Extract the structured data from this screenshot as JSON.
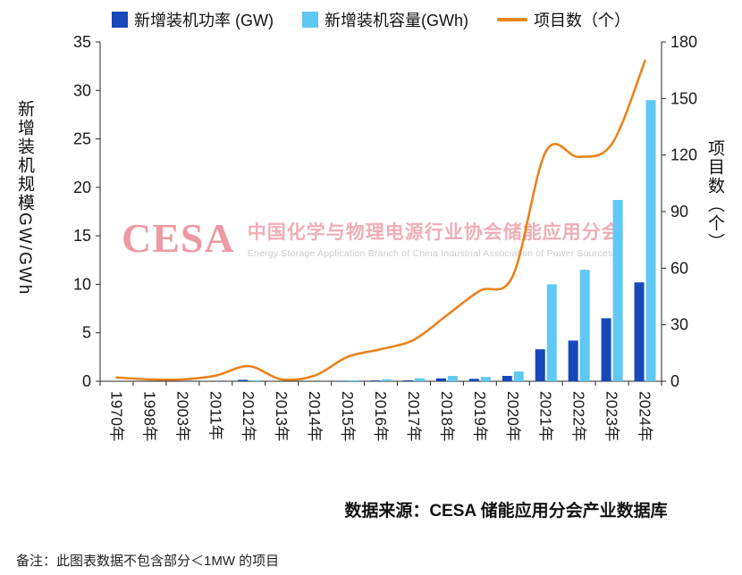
{
  "legend": [
    {
      "label": "新增装机功率 (GW)",
      "marker": "square",
      "color": "#1747bb"
    },
    {
      "label": "新增装机容量(GWh)",
      "marker": "square",
      "color": "#5fc8f4"
    },
    {
      "label": "项目数（个）",
      "marker": "line",
      "color": "#e8831d"
    }
  ],
  "left_axis_title": "新增装机规模GW/GWh",
  "right_axis_title": "项目数（个）",
  "watermark": {
    "logo": "CESA",
    "title": "中国化学与物理电源行业协会储能应用分会",
    "subtitle": "Energy Storage Application Branch of China Industrial Association of Power Sources",
    "logo_color": "#e9808d",
    "title_color": "#ec9aa4",
    "subtitle_color": "#bfbfc5"
  },
  "source": "数据来源：CESA 储能应用分会产业数据库",
  "note": "备注：此图表数据不包含部分＜1MW 的项目",
  "colors": {
    "axis": "#262626",
    "tick_text": "#1a1a1a"
  },
  "chart_data": {
    "type": "combo",
    "categories": [
      "1970年",
      "1998年",
      "2003年",
      "2011年",
      "2012年",
      "2013年",
      "2014年",
      "2015年",
      "2016年",
      "2017年",
      "2018年",
      "2019年",
      "2020年",
      "2021年",
      "2022年",
      "2023年",
      "2024年"
    ],
    "series": [
      {
        "name": "新增装机功率 (GW)",
        "type": "bar",
        "axis": "left",
        "color": "#1747bb",
        "values": [
          0,
          0,
          0,
          0,
          0.15,
          0,
          0,
          0.05,
          0.08,
          0.1,
          0.3,
          0.25,
          0.55,
          3.3,
          4.2,
          6.5,
          10.2
        ]
      },
      {
        "name": "新增装机容量(GWh)",
        "type": "bar",
        "axis": "left",
        "color": "#5fc8f4",
        "values": [
          0,
          0,
          0,
          0,
          0.1,
          0,
          0,
          0.1,
          0.2,
          0.3,
          0.55,
          0.45,
          1.0,
          10.0,
          11.5,
          18.7,
          29.0
        ]
      },
      {
        "name": "项目数（个）",
        "type": "line",
        "axis": "right",
        "color": "#e8831d",
        "values": [
          2,
          1,
          1,
          3,
          8,
          1,
          3,
          13,
          17,
          22,
          35,
          48,
          56,
          122,
          119,
          126,
          170
        ]
      }
    ],
    "left_axis": {
      "min": 0,
      "max": 35,
      "step": 5,
      "label": "新增装机规模GW/GWh"
    },
    "right_axis": {
      "min": 0,
      "max": 180,
      "step": 30,
      "label": "项目数（个）"
    },
    "grid": false,
    "legend_position": "top"
  }
}
